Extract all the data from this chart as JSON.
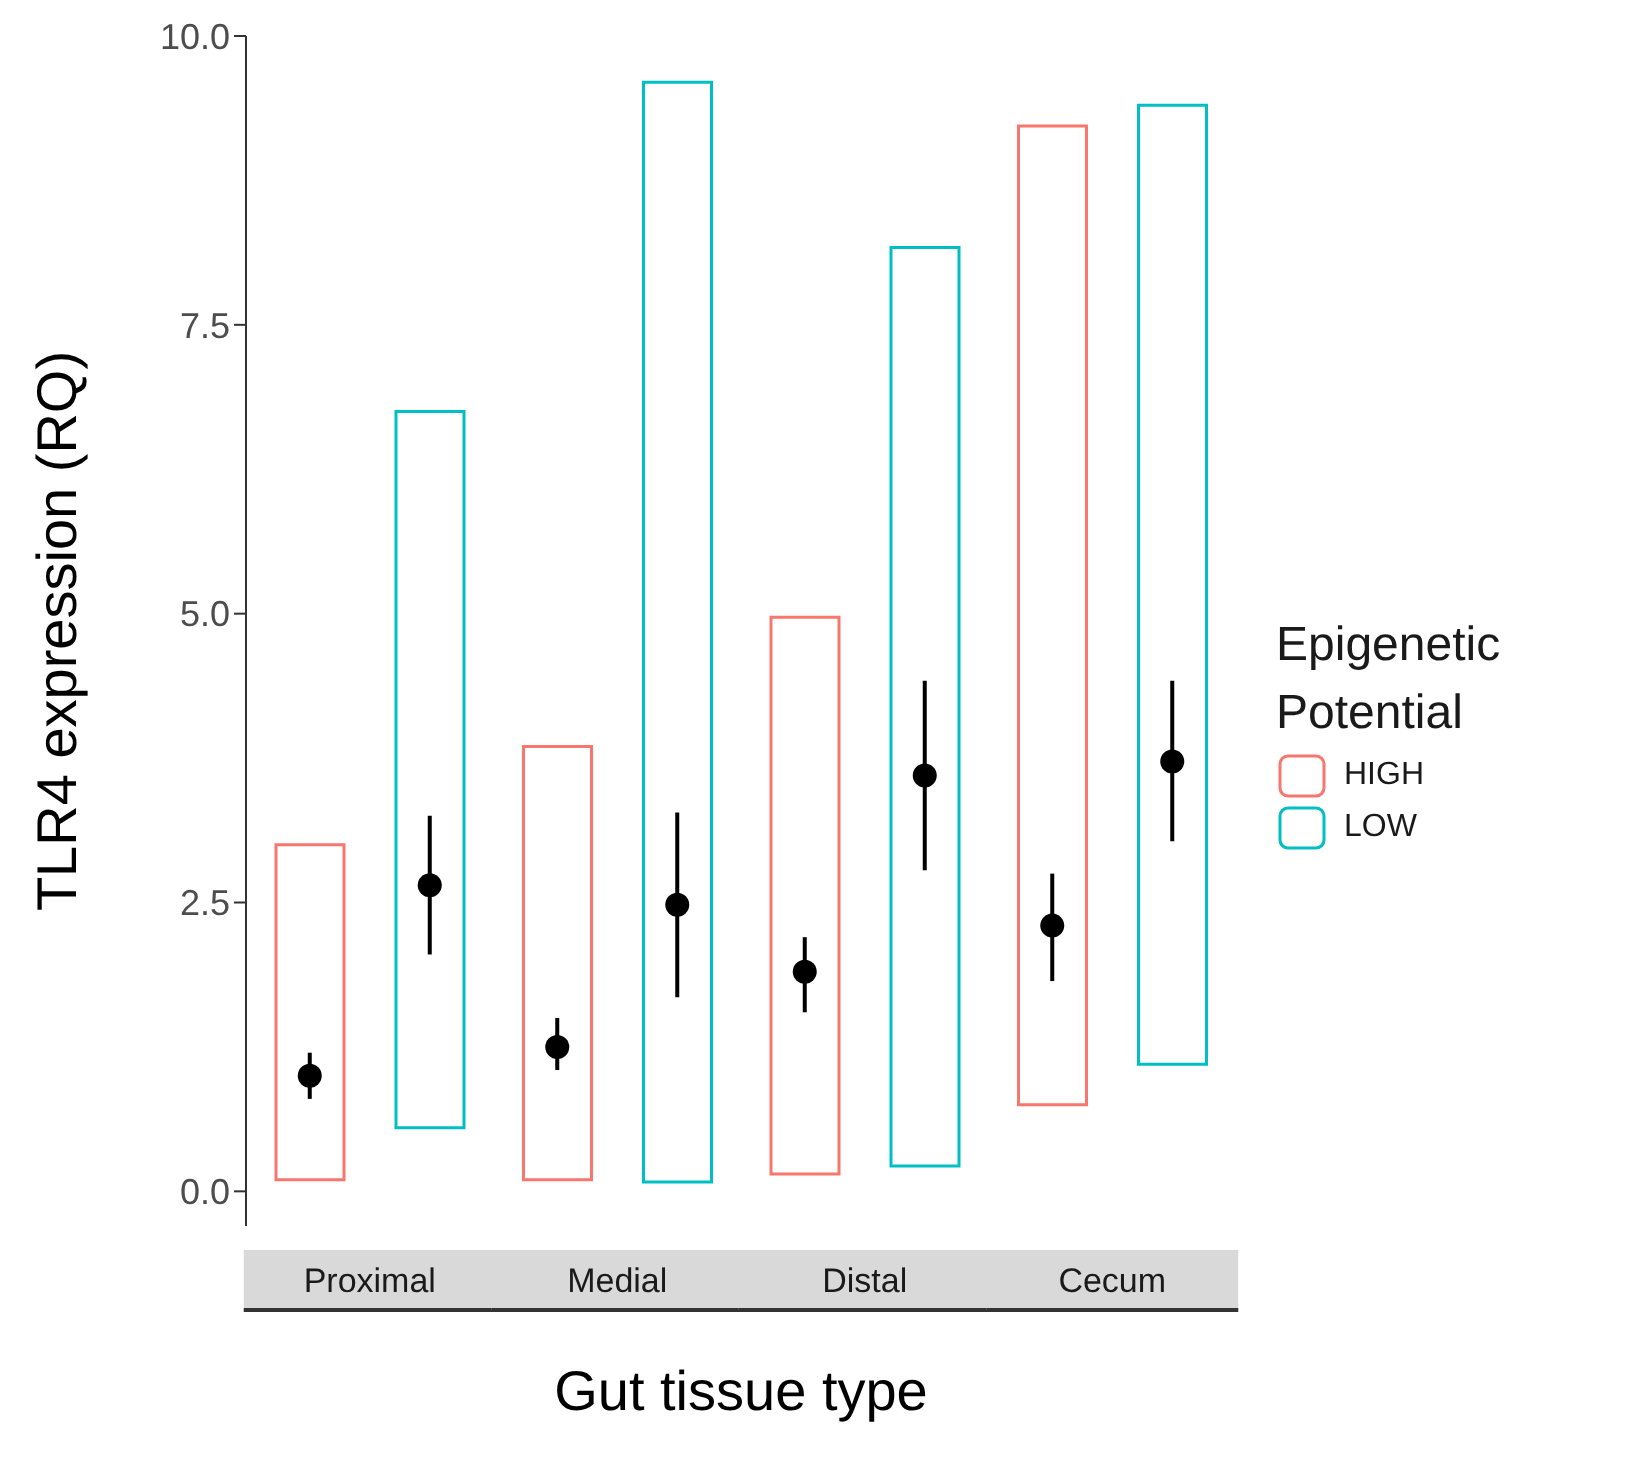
{
  "chart_data": {
    "type": "bar",
    "xlabel": "Gut tissue type",
    "ylabel": "TLR4 expression (RQ)",
    "legend_title": "Epigenetic Potential",
    "legend": "right",
    "grid": false,
    "categories": [
      "Proximal",
      "Medial",
      "Distal",
      "Cecum"
    ],
    "ylim": [
      -0.3,
      10
    ],
    "yticks": [
      {
        "value": 0,
        "label": "0.0"
      },
      {
        "value": 2.5,
        "label": "2.5"
      },
      {
        "value": 5,
        "label": "5.0"
      },
      {
        "value": 7.5,
        "label": "7.5"
      },
      {
        "value": 10,
        "label": "10.0"
      }
    ],
    "series": [
      {
        "name": "HIGH",
        "color": "#f8766d",
        "base": [
          0.1,
          0.1,
          0.15,
          0.75
        ],
        "values": [
          2.9,
          3.75,
          4.82,
          8.47
        ]
      },
      {
        "name": "LOW",
        "color": "#00bfc4",
        "base": [
          0.55,
          0.08,
          0.22,
          1.1
        ],
        "values": [
          6.2,
          9.52,
          7.95,
          8.3
        ]
      },
      {
        "type": "scatter",
        "color": "#000000",
        "marker": "circle",
        "values": [
          1.0,
          1.25,
          1.9,
          2.3
        ],
        "errors": [
          [
            0.8,
            1.2
          ],
          [
            1.05,
            1.5
          ],
          [
            1.55,
            2.2
          ],
          [
            1.82,
            2.75
          ]
        ]
      },
      {
        "type": "scatter",
        "color": "#000000",
        "marker": "circle",
        "values": [
          2.65,
          2.48,
          3.6,
          3.72
        ],
        "errors": [
          [
            2.05,
            3.25
          ],
          [
            1.68,
            3.28
          ],
          [
            2.78,
            4.42
          ],
          [
            3.03,
            4.42
          ]
        ]
      }
    ]
  }
}
